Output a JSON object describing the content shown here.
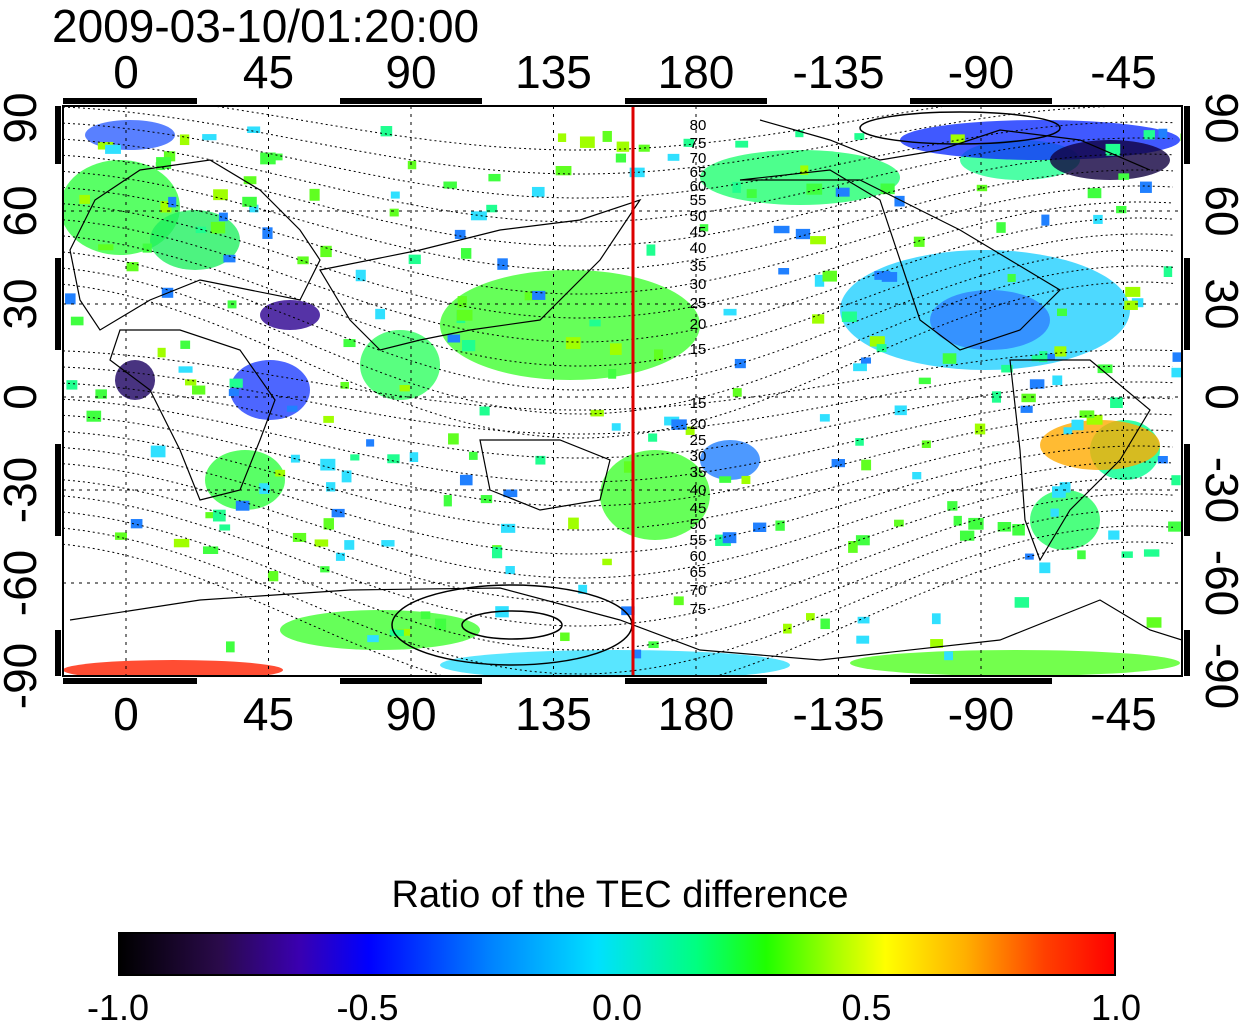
{
  "title": "2009-03-10/01:20:00",
  "map": {
    "lon_ticks": [
      "0",
      "45",
      "90",
      "135",
      "180",
      "-135",
      "-90",
      "-45"
    ],
    "lat_ticks_left": [
      "90",
      "60",
      "30",
      "0",
      "-30",
      "-60",
      "-90"
    ],
    "lat_ticks_right": [
      "90",
      "60",
      "30",
      "0",
      "-30",
      "-60",
      "-90"
    ],
    "contour_labels_north": [
      "80",
      "75",
      "70",
      "65",
      "60",
      "55",
      "50",
      "45",
      "40",
      "35",
      "30",
      "25",
      "20",
      "15"
    ],
    "contour_labels_south": [
      "15",
      "20",
      "25",
      "30",
      "35",
      "40",
      "45",
      "50",
      "55",
      "60",
      "65",
      "70",
      "75"
    ],
    "terminator_color": "#dd0000",
    "terminator_lon": 160
  },
  "colorbar": {
    "title": "Ratio of the TEC difference",
    "ticks": [
      "-1.0",
      "-0.5",
      "0.0",
      "0.5",
      "1.0"
    ],
    "min": -1.0,
    "max": 1.0
  }
}
